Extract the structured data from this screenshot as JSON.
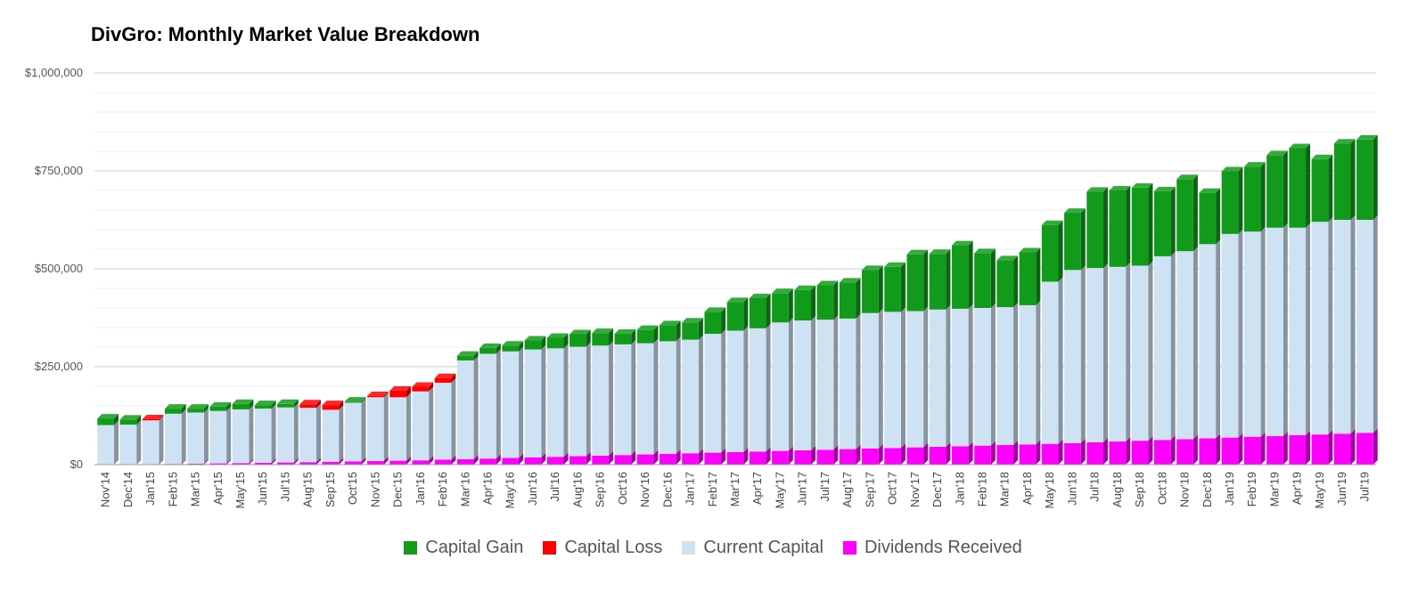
{
  "chart_data": {
    "type": "bar",
    "stacked": true,
    "title": "DivGro: Monthly Market Value Breakdown",
    "xlabel": "",
    "ylabel": "",
    "ylim": [
      0,
      1000000
    ],
    "yticks": [
      0,
      250000,
      500000,
      750000,
      1000000
    ],
    "ytick_labels": [
      "$0",
      "$250,000",
      "$500,000",
      "$750,000",
      "$1,000,000"
    ],
    "grid": true,
    "legend_position": "bottom",
    "categories": [
      "Nov'14",
      "Dec'14",
      "Jan'15",
      "Feb'15",
      "Mar'15",
      "Apr'15",
      "May'15",
      "Jun'15",
      "Jul'15",
      "Aug'15",
      "Sep'15",
      "Oct'15",
      "Nov'15",
      "Dec'15",
      "Jan'16",
      "Feb'16",
      "Mar'16",
      "Apr'16",
      "May'16",
      "Jun'16",
      "Jul'16",
      "Aug'16",
      "Sep'16",
      "Oct'16",
      "Nov'16",
      "Dec'16",
      "Jan'17",
      "Feb'17",
      "Mar'17",
      "Apr'17",
      "May'17",
      "Jun'17",
      "Jul'17",
      "Aug'17",
      "Sep'17",
      "Oct'17",
      "Nov'17",
      "Dec'17",
      "Jan'18",
      "Feb'18",
      "Mar'18",
      "Apr'18",
      "May'18",
      "Jun'18",
      "Jul'18",
      "Aug'18",
      "Sep'18",
      "Oct'18",
      "Nov'18",
      "Dec'18",
      "Jan'19",
      "Feb'19",
      "Mar'19",
      "Apr'19",
      "May'19",
      "Jun'19",
      "Jul'19"
    ],
    "series": [
      {
        "name": "Dividends Received",
        "color": "#ff00ff",
        "values": [
          500,
          800,
          1200,
          1800,
          2500,
          3200,
          4000,
          4800,
          5500,
          6300,
          7000,
          8000,
          9000,
          10000,
          11000,
          12500,
          14000,
          15500,
          17000,
          18500,
          20000,
          21500,
          23000,
          24500,
          26000,
          27500,
          29000,
          30500,
          32000,
          33500,
          35000,
          36500,
          38000,
          39500,
          41000,
          42500,
          44000,
          45500,
          47000,
          48500,
          50000,
          51500,
          53000,
          55000,
          57000,
          59000,
          61000,
          63000,
          65000,
          67000,
          69000,
          71000,
          73000,
          75000,
          77000,
          79000,
          81000
        ]
      },
      {
        "name": "Current Capital",
        "color": "#cfe2f3",
        "values": [
          100500,
          101200,
          111800,
          128200,
          130500,
          133800,
          137000,
          138200,
          140500,
          138700,
          133000,
          150000,
          163000,
          162000,
          176000,
          196500,
          252000,
          267500,
          272000,
          275500,
          277000,
          279500,
          281000,
          282500,
          284000,
          287500,
          290000,
          303500,
          310000,
          314500,
          328000,
          331500,
          332000,
          333500,
          346000,
          347500,
          348000,
          350500,
          351000,
          351500,
          352000,
          355500,
          414000,
          442000,
          445000,
          446000,
          447000,
          469000,
          480000,
          496000,
          520000,
          524000,
          532000,
          530000,
          543000,
          546000,
          544000
        ]
      },
      {
        "name": "Capital Loss",
        "color": "#ff0000",
        "values": [
          0,
          0,
          3000,
          0,
          0,
          0,
          0,
          0,
          0,
          9000,
          12000,
          0,
          3000,
          17000,
          12000,
          12000,
          0,
          0,
          0,
          0,
          0,
          0,
          0,
          0,
          0,
          0,
          0,
          0,
          0,
          0,
          0,
          0,
          0,
          0,
          0,
          0,
          0,
          0,
          0,
          0,
          0,
          0,
          0,
          0,
          0,
          0,
          0,
          0,
          0,
          0,
          0,
          0,
          0,
          0,
          0,
          0,
          0
        ]
      },
      {
        "name": "Capital Gain",
        "color": "#129b1b",
        "values": [
          17000,
          13000,
          0,
          13000,
          10000,
          11000,
          14000,
          9000,
          9000,
          0,
          0,
          3000,
          0,
          0,
          0,
          0,
          12000,
          15000,
          15000,
          23000,
          27000,
          32000,
          32000,
          27000,
          34000,
          41000,
          44000,
          56000,
          73000,
          77000,
          75000,
          78000,
          88000,
          92000,
          110000,
          115000,
          145000,
          142000,
          162000,
          140000,
          120000,
          135000,
          145000,
          146000,
          195000,
          195000,
          199000,
          166000,
          184000,
          131000,
          160000,
          166000,
          185000,
          203000,
          160000,
          195000,
          205000
        ]
      }
    ]
  },
  "legend": [
    {
      "label": "Capital Gain",
      "color": "#129b1b"
    },
    {
      "label": "Capital Loss",
      "color": "#ff0000"
    },
    {
      "label": "Current Capital",
      "color": "#cfe2f3"
    },
    {
      "label": "Dividends Received",
      "color": "#ff00ff"
    }
  ]
}
